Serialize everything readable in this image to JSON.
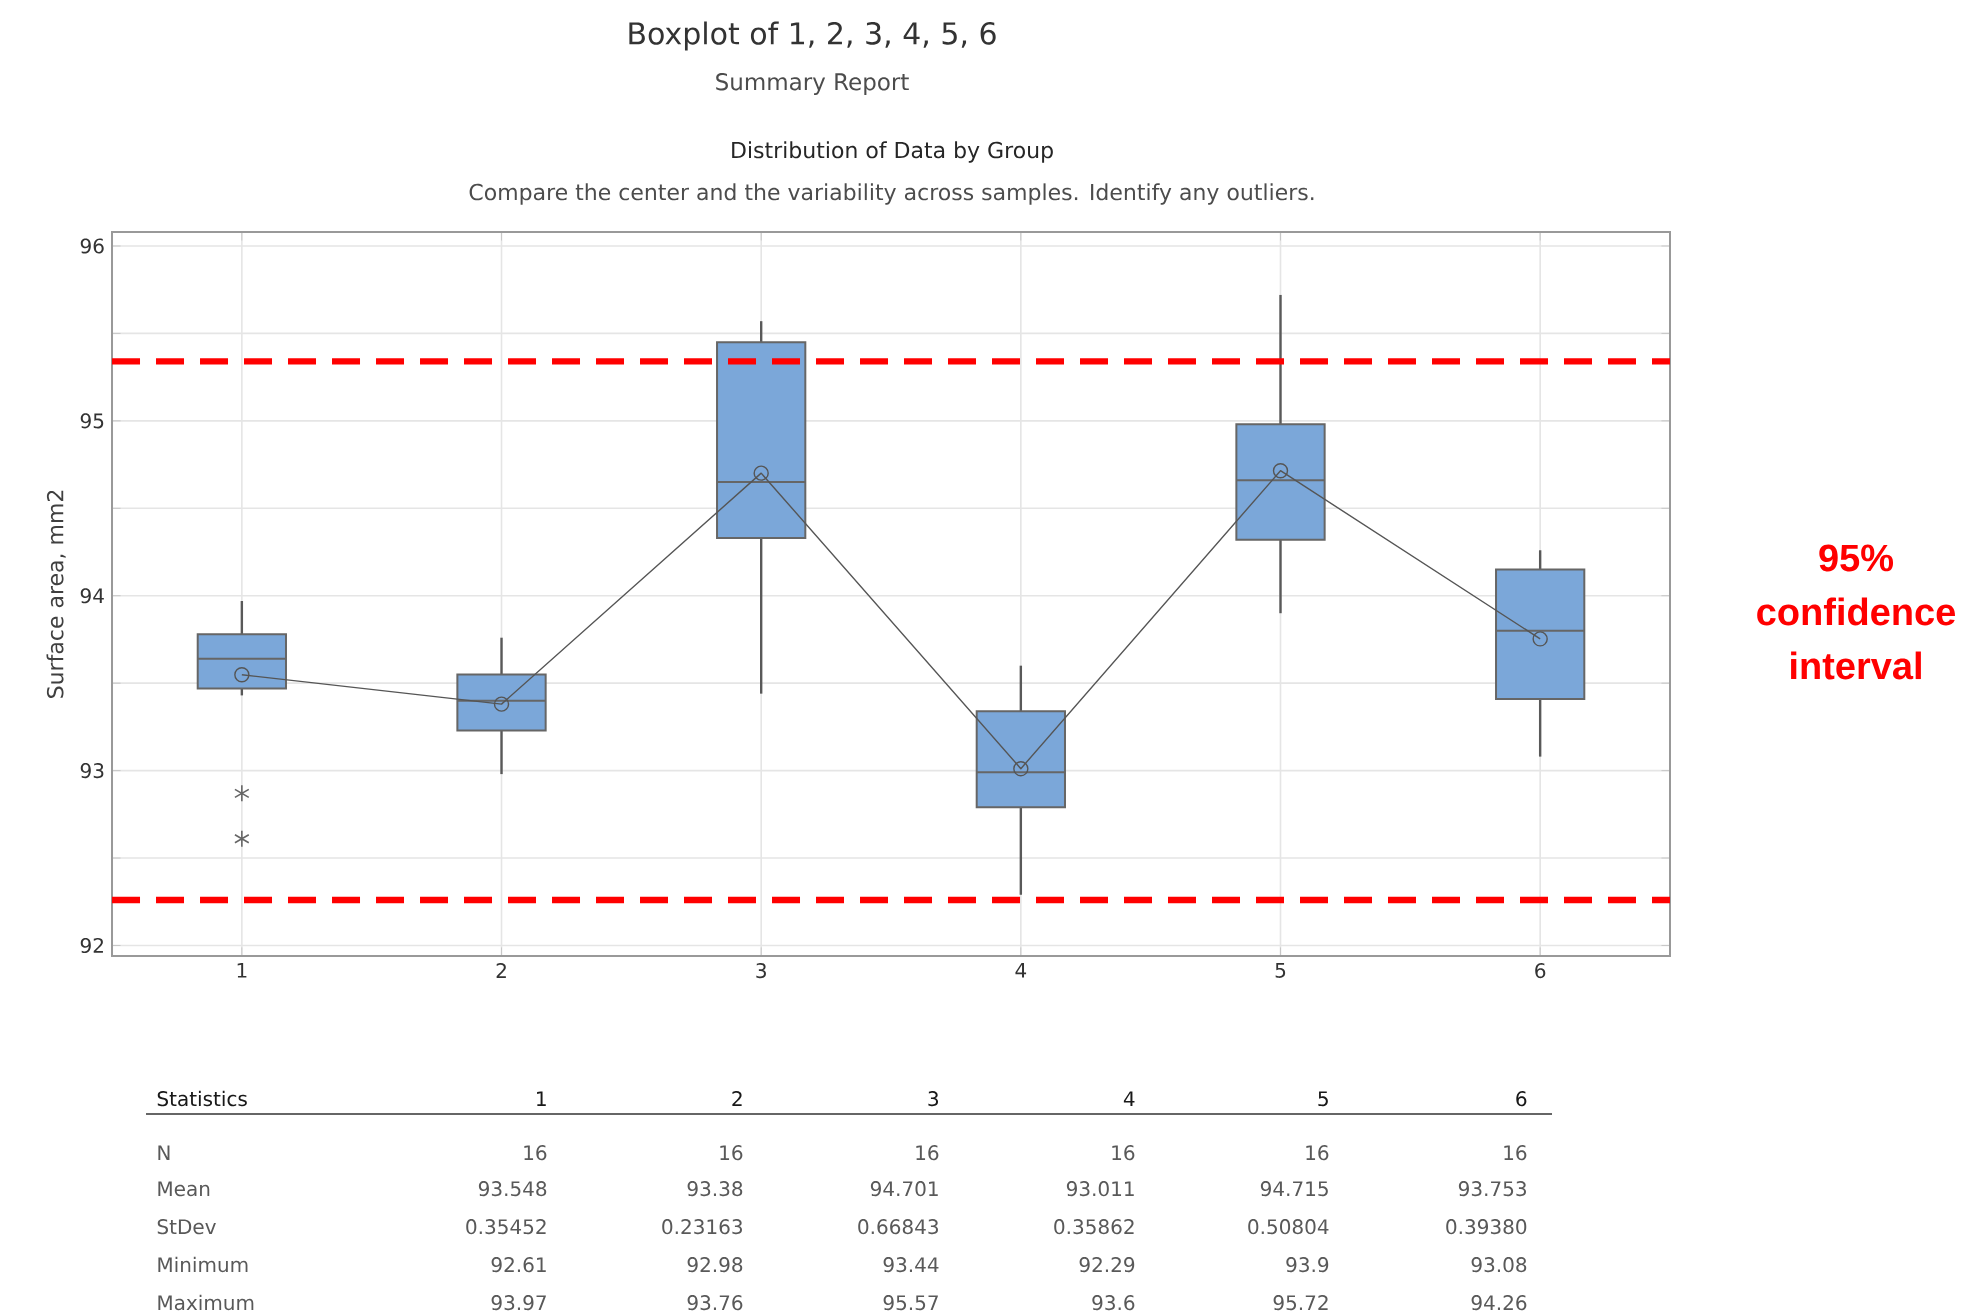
{
  "chart_data": {
    "type": "box",
    "title": "Boxplot of 1, 2, 3, 4, 5, 6",
    "subtitle": "Summary Report",
    "ylabel": "Surface area, mm2",
    "categories": [
      "1",
      "2",
      "3",
      "4",
      "5",
      "6"
    ],
    "ylim": [
      91.94,
      96.08
    ],
    "yticks": [
      92,
      {
        "value": 92.5,
        "label": null
      },
      93,
      {
        "value": 93.5,
        "label": null
      },
      94,
      {
        "value": 94.5,
        "label": null
      },
      95,
      {
        "value": 95.5,
        "label": null
      },
      96
    ],
    "grid": true,
    "series": [
      {
        "type": "box",
        "color": "#7ba7d9",
        "boxes": [
          {
            "low": 93.43,
            "q1": 93.47,
            "median": 93.64,
            "q3": 93.78,
            "high": 93.97,
            "outliers": [
              92.87,
              92.61
            ]
          },
          {
            "low": 92.98,
            "q1": 93.23,
            "median": 93.4,
            "q3": 93.55,
            "high": 93.76
          },
          {
            "low": 93.44,
            "q1": 94.33,
            "median": 94.65,
            "q3": 95.45,
            "high": 95.57
          },
          {
            "low": 92.29,
            "q1": 92.79,
            "median": 92.99,
            "q3": 93.34,
            "high": 93.6
          },
          {
            "low": 93.9,
            "q1": 94.32,
            "median": 94.66,
            "q3": 94.98,
            "high": 95.72
          },
          {
            "low": 93.08,
            "q1": 93.41,
            "median": 93.8,
            "q3": 94.15,
            "high": 94.26
          }
        ]
      },
      {
        "type": "line",
        "color": "#555555",
        "marker": "circle",
        "values": [
          93.548,
          93.38,
          94.701,
          93.011,
          94.715,
          93.753
        ]
      }
    ],
    "ref_lines": [
      {
        "axis": "y",
        "value": 95.34,
        "color": "#ff0000",
        "line_style": "dashed"
      },
      {
        "axis": "y",
        "value": 92.26,
        "color": "#ff0000",
        "line_style": "dashed"
      }
    ],
    "annotations": [
      "Distribution of Data by Group",
      "Compare the center and the variability across samples. Identify any outliers.",
      "95% confidence interval",
      "Statistics",
      "1",
      "2",
      "3",
      "4",
      "5",
      "6",
      "N",
      "16",
      "16",
      "16",
      "16",
      "16",
      "16",
      "Mean",
      "93.548",
      "93.38",
      "94.701",
      "93.011",
      "94.715",
      "93.753",
      "StDev",
      "0.35452",
      "0.23163",
      "0.66843",
      "0.35862",
      "0.50804",
      "0.39380",
      "Minimum",
      "92.61",
      "92.98",
      "93.44",
      "92.29",
      "93.9",
      "93.08",
      "Maximum",
      "93.97",
      "93.76",
      "95.57",
      "93.6",
      "95.72",
      "94.26"
    ]
  }
}
